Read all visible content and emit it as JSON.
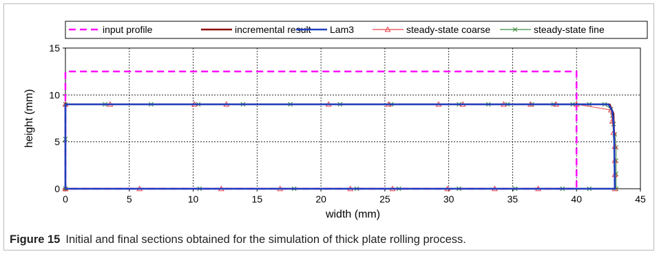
{
  "caption": {
    "label": "Figure 15",
    "text": "Initial and final sections obtained for the simulation of thick plate rolling process."
  },
  "chart_data": {
    "type": "line",
    "xlabel": "width (mm)",
    "ylabel": "height (mm)",
    "xlim": [
      0,
      45
    ],
    "ylim": [
      0,
      15
    ],
    "xticks": [
      0,
      5,
      10,
      15,
      20,
      25,
      30,
      35,
      40,
      45
    ],
    "yticks": [
      0,
      5,
      10,
      15
    ],
    "grid": true,
    "legend_position": "top",
    "series": [
      {
        "name": "input profile",
        "color": "#ff00ff",
        "style": "dashed",
        "marker": "none",
        "x": [
          0,
          0,
          40,
          40,
          0
        ],
        "y": [
          0,
          12.5,
          12.5,
          0,
          0
        ]
      },
      {
        "name": "incremental result",
        "color": "#8b0000",
        "style": "solid",
        "marker": "none",
        "x": [
          0,
          0,
          42.6,
          42.9,
          42.95,
          43.0,
          0
        ],
        "y": [
          0,
          9.0,
          9.0,
          8.0,
          6.0,
          0,
          0
        ]
      },
      {
        "name": "Lam3",
        "color": "#1f3fbf",
        "style": "solid",
        "marker": "none",
        "x": [
          0,
          0,
          42.5,
          42.8,
          42.9,
          42.95,
          43.0,
          0
        ],
        "y": [
          0,
          9.0,
          9.0,
          8.3,
          7.0,
          5.0,
          0,
          0
        ]
      },
      {
        "name": "steady-state coarse",
        "color": "#e8404a",
        "style": "solid",
        "marker": "triangle",
        "x": [
          0,
          0,
          3.5,
          10.1,
          12.6,
          20.6,
          25.3,
          29.2,
          31.1,
          34.3,
          36.4,
          38.4,
          40.0,
          42.7,
          42.8,
          42.9,
          43.0,
          43.0,
          43.0,
          43.0,
          37.0,
          33.6,
          29.9,
          25.6,
          22.3,
          16.8,
          12.2,
          5.8,
          0
        ],
        "y": [
          0,
          9.0,
          9.0,
          9.0,
          9.0,
          9.0,
          9.0,
          9.0,
          9.0,
          9.0,
          9.0,
          9.0,
          9.0,
          8.4,
          7.2,
          6.0,
          4.5,
          3.0,
          1.5,
          0,
          0,
          0,
          0,
          0,
          0,
          0,
          0,
          0,
          0
        ]
      },
      {
        "name": "steady-state fine",
        "color": "#3a8a3a",
        "style": "solid",
        "marker": "x",
        "x": [
          0,
          0,
          0,
          3.1,
          6.7,
          10.4,
          13.9,
          17.6,
          21.5,
          25.5,
          30.8,
          33.1,
          34.6,
          36.5,
          38.2,
          39.7,
          41.0,
          42.2,
          42.7,
          42.8,
          42.9,
          43.0,
          43.1,
          43.1,
          43.1,
          43.1,
          41.0,
          38.9,
          35.2,
          30.8,
          26.1,
          22.8,
          17.9,
          10.5,
          0
        ],
        "y": [
          0,
          5.3,
          9.0,
          9.0,
          9.0,
          9.0,
          9.0,
          9.0,
          9.0,
          9.0,
          9.0,
          9.0,
          9.0,
          9.0,
          9.0,
          9.0,
          9.0,
          9.0,
          8.5,
          7.8,
          6.9,
          5.8,
          4.4,
          3.0,
          1.6,
          0,
          0,
          0,
          0,
          0,
          0,
          0,
          0,
          0,
          0
        ]
      }
    ]
  }
}
